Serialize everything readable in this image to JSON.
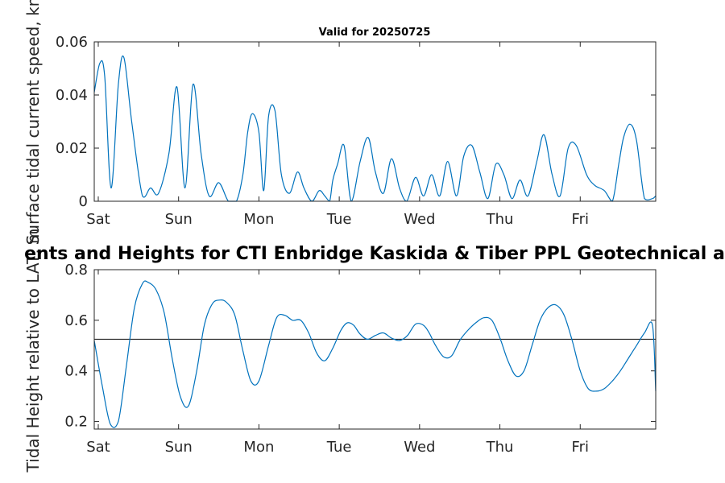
{
  "chart_data": [
    {
      "type": "line",
      "title": "Valid for 20250725",
      "xlabel": "",
      "ylabel": "Surface tidal current speed, kn",
      "ylim": [
        0,
        0.06
      ],
      "yticks": [
        "0",
        "0.02",
        "0.04",
        "0.06"
      ],
      "xticks": [
        "Sat",
        "Sun",
        "Mon",
        "Tue",
        "Wed",
        "Thu",
        "Fri"
      ],
      "x_unit": "days from start",
      "xlim": [
        -0.05,
        6.94
      ],
      "grid": false,
      "line_color": "#0072BD",
      "series": [
        {
          "x": [
            -0.05,
            0.02,
            0.08,
            0.16,
            0.25,
            0.32,
            0.42,
            0.55,
            0.65,
            0.75,
            0.88,
            0.98,
            1.08,
            1.18,
            1.28,
            1.38,
            1.5,
            1.62,
            1.72,
            1.8,
            1.86,
            1.92,
            2.0,
            2.06,
            2.12,
            2.2,
            2.28,
            2.38,
            2.48,
            2.56,
            2.66,
            2.75,
            2.82,
            2.88,
            2.92,
            2.98,
            3.06,
            3.15,
            3.26,
            3.36,
            3.45,
            3.55,
            3.65,
            3.75,
            3.84,
            3.95,
            4.05,
            4.15,
            4.25,
            4.35,
            4.46,
            4.55,
            4.65,
            4.75,
            4.85,
            4.95,
            5.05,
            5.15,
            5.25,
            5.35,
            5.46,
            5.55,
            5.65,
            5.75,
            5.85,
            5.95,
            6.08,
            6.18,
            6.3,
            6.4,
            6.48,
            6.54,
            6.62,
            6.7,
            6.8,
            6.9,
            6.94
          ],
          "y": [
            0.041,
            0.052,
            0.047,
            0.005,
            0.044,
            0.054,
            0.029,
            0.002,
            0.005,
            0.003,
            0.018,
            0.043,
            0.005,
            0.044,
            0.018,
            0.002,
            0.007,
            0.0,
            0.0,
            0.01,
            0.026,
            0.033,
            0.026,
            0.004,
            0.032,
            0.034,
            0.01,
            0.003,
            0.011,
            0.005,
            0.0,
            0.004,
            0.002,
            0.0,
            0.008,
            0.014,
            0.021,
            0.0,
            0.015,
            0.024,
            0.011,
            0.003,
            0.016,
            0.005,
            0.0,
            0.009,
            0.002,
            0.01,
            0.002,
            0.015,
            0.002,
            0.017,
            0.021,
            0.011,
            0.001,
            0.014,
            0.01,
            0.001,
            0.008,
            0.002,
            0.015,
            0.025,
            0.01,
            0.002,
            0.02,
            0.021,
            0.01,
            0.006,
            0.004,
            0.0,
            0.014,
            0.024,
            0.029,
            0.023,
            0.001,
            0.001,
            0.002
          ]
        }
      ]
    },
    {
      "type": "line",
      "title": "ents and Heights for CTI Enbridge  Kaskida & Tiber PPL Geotechnical a",
      "xlabel": "",
      "ylabel": "Tidal Height relative to LAT, m",
      "ylim": [
        0.17,
        0.8
      ],
      "yticks": [
        "0.2",
        "0.4",
        "0.6",
        "0.8"
      ],
      "xticks": [
        "Sat",
        "Sun",
        "Mon",
        "Tue",
        "Wed",
        "Thu",
        "Fri"
      ],
      "x_unit": "days from start",
      "xlim": [
        -0.05,
        6.94
      ],
      "grid": false,
      "line_color": "#0072BD",
      "reference_line": {
        "y": 0.525,
        "color": "#262626"
      },
      "series": [
        {
          "x": [
            -0.05,
            0.05,
            0.15,
            0.25,
            0.35,
            0.45,
            0.55,
            0.62,
            0.72,
            0.82,
            0.92,
            1.02,
            1.12,
            1.22,
            1.32,
            1.42,
            1.52,
            1.6,
            1.7,
            1.8,
            1.9,
            2.0,
            2.12,
            2.22,
            2.32,
            2.42,
            2.52,
            2.62,
            2.72,
            2.82,
            2.92,
            3.02,
            3.1,
            3.18,
            3.26,
            3.35,
            3.45,
            3.55,
            3.65,
            3.75,
            3.85,
            3.95,
            4.05,
            4.12,
            4.2,
            4.3,
            4.4,
            4.5,
            4.6,
            4.7,
            4.8,
            4.9,
            5.0,
            5.1,
            5.2,
            5.3,
            5.4,
            5.5,
            5.6,
            5.7,
            5.8,
            5.9,
            6.0,
            6.1,
            6.2,
            6.3,
            6.4,
            6.5,
            6.6,
            6.7,
            6.8,
            6.9,
            6.94
          ],
          "y": [
            0.52,
            0.34,
            0.19,
            0.2,
            0.42,
            0.65,
            0.745,
            0.75,
            0.72,
            0.63,
            0.45,
            0.3,
            0.26,
            0.39,
            0.58,
            0.665,
            0.68,
            0.67,
            0.62,
            0.48,
            0.36,
            0.36,
            0.5,
            0.61,
            0.62,
            0.6,
            0.6,
            0.55,
            0.47,
            0.44,
            0.49,
            0.56,
            0.59,
            0.58,
            0.545,
            0.525,
            0.54,
            0.55,
            0.53,
            0.52,
            0.54,
            0.585,
            0.58,
            0.55,
            0.5,
            0.455,
            0.46,
            0.52,
            0.56,
            0.59,
            0.61,
            0.6,
            0.53,
            0.44,
            0.38,
            0.4,
            0.5,
            0.6,
            0.65,
            0.66,
            0.62,
            0.52,
            0.4,
            0.33,
            0.32,
            0.33,
            0.36,
            0.4,
            0.45,
            0.5,
            0.55,
            0.58,
            0.32
          ]
        }
      ]
    }
  ]
}
